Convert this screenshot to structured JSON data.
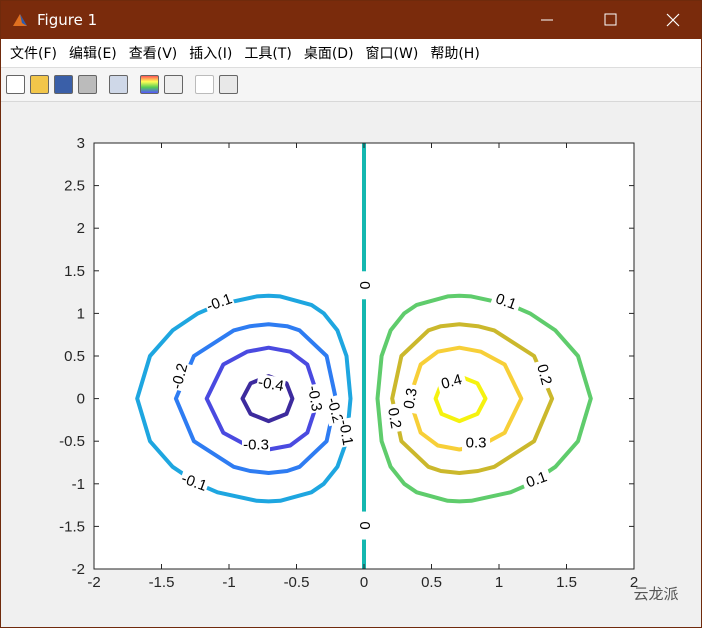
{
  "window": {
    "title": "Figure 1",
    "menu": [
      "文件(F)",
      "编辑(E)",
      "查看(V)",
      "插入(I)",
      "工具(T)",
      "桌面(D)",
      "窗口(W)",
      "帮助(H)"
    ]
  },
  "chart_data": {
    "type": "contour",
    "xlim": [
      -2,
      2
    ],
    "ylim": [
      -2,
      3
    ],
    "xticks": [
      -2,
      -1.5,
      -1,
      -0.5,
      0,
      0.5,
      1,
      1.5,
      2
    ],
    "yticks": [
      -2,
      -1.5,
      -1,
      -0.5,
      0,
      0.5,
      1,
      1.5,
      2,
      2.5,
      3
    ],
    "contours": [
      {
        "level": -0.4,
        "color": "#3d2b9e",
        "x": [
          -0.53,
          -0.574,
          -0.707,
          -0.84,
          -0.9,
          -0.84,
          -0.707,
          -0.574
        ],
        "y": [
          0,
          0.18,
          0.264,
          0.18,
          0,
          -0.18,
          -0.264,
          -0.18
        ]
      },
      {
        "level": -0.3,
        "color": "#4a4ae0",
        "x": [
          -0.336,
          -0.42,
          -0.547,
          -0.707,
          -0.867,
          -1.042,
          -1.165,
          -1.042,
          -0.867,
          -0.707,
          -0.547,
          -0.42
        ],
        "y": [
          0,
          0.4,
          0.55,
          0.598,
          0.55,
          0.4,
          0,
          -0.4,
          -0.55,
          -0.598,
          -0.55,
          -0.4
        ]
      },
      {
        "level": -0.2,
        "color": "#2e7cf2",
        "x": [
          -0.209,
          -0.277,
          -0.477,
          -0.57,
          -0.707,
          -0.844,
          -0.965,
          -1.26,
          -1.393,
          -1.26,
          -0.965,
          -0.844,
          -0.707,
          -0.57,
          -0.477,
          -0.277
        ],
        "y": [
          0,
          0.5,
          0.8,
          0.85,
          0.873,
          0.85,
          0.8,
          0.5,
          0,
          -0.5,
          -0.8,
          -0.85,
          -0.873,
          -0.85,
          -0.8,
          -0.5
        ]
      },
      {
        "level": -0.1,
        "color": "#1ea6e0",
        "x": [
          -0.1,
          -0.13,
          -0.197,
          -0.298,
          -0.39,
          -0.62,
          -0.707,
          -0.795,
          -1.085,
          -1.23,
          -1.418,
          -1.585,
          -1.68,
          -1.585,
          -1.418,
          -1.23,
          -1.085,
          -0.795,
          -0.707,
          -0.62,
          -0.39,
          -0.298,
          -0.197,
          -0.13
        ],
        "y": [
          0,
          0.5,
          0.8,
          1,
          1.1,
          1.2,
          1.207,
          1.2,
          1.1,
          1,
          0.8,
          0.5,
          0,
          -0.5,
          -0.8,
          -1,
          -1.1,
          -1.2,
          -1.207,
          -1.2,
          -1.1,
          -1,
          -0.8,
          -0.5
        ]
      },
      {
        "level": 0,
        "color": "#14b8b0",
        "x": [
          0,
          0
        ],
        "y": [
          -2,
          3
        ]
      },
      {
        "level": 0.1,
        "color": "#5fcc6c",
        "x": [
          0.1,
          0.13,
          0.197,
          0.298,
          0.39,
          0.62,
          0.707,
          0.795,
          1.085,
          1.23,
          1.418,
          1.585,
          1.68,
          1.585,
          1.418,
          1.23,
          1.085,
          0.795,
          0.707,
          0.62,
          0.39,
          0.298,
          0.197,
          0.13
        ],
        "y": [
          0,
          0.5,
          0.8,
          1,
          1.1,
          1.2,
          1.207,
          1.2,
          1.1,
          1,
          0.8,
          0.5,
          0,
          -0.5,
          -0.8,
          -1,
          -1.1,
          -1.2,
          -1.207,
          -1.2,
          -1.1,
          -1,
          -0.8,
          -0.5
        ]
      },
      {
        "level": 0.2,
        "color": "#cbb82c",
        "x": [
          0.209,
          0.277,
          0.477,
          0.57,
          0.707,
          0.844,
          0.965,
          1.26,
          1.393,
          1.26,
          0.965,
          0.844,
          0.707,
          0.57,
          0.477,
          0.277
        ],
        "y": [
          0,
          0.5,
          0.8,
          0.85,
          0.873,
          0.85,
          0.8,
          0.5,
          0,
          -0.5,
          -0.8,
          -0.85,
          -0.873,
          -0.85,
          -0.8,
          -0.5
        ]
      },
      {
        "level": 0.3,
        "color": "#f7cf38",
        "x": [
          0.336,
          0.42,
          0.547,
          0.707,
          0.867,
          1.042,
          1.165,
          1.042,
          0.867,
          0.707,
          0.547,
          0.42
        ],
        "y": [
          0,
          0.4,
          0.55,
          0.598,
          0.55,
          0.4,
          0,
          -0.4,
          -0.55,
          -0.598,
          -0.55,
          -0.4
        ]
      },
      {
        "level": 0.4,
        "color": "#f5f20f",
        "x": [
          0.53,
          0.574,
          0.707,
          0.84,
          0.9,
          0.84,
          0.707,
          0.574
        ],
        "y": [
          0,
          0.18,
          0.264,
          0.18,
          0,
          -0.18,
          -0.264,
          -0.18
        ]
      }
    ]
  },
  "watermark": "云龙派"
}
